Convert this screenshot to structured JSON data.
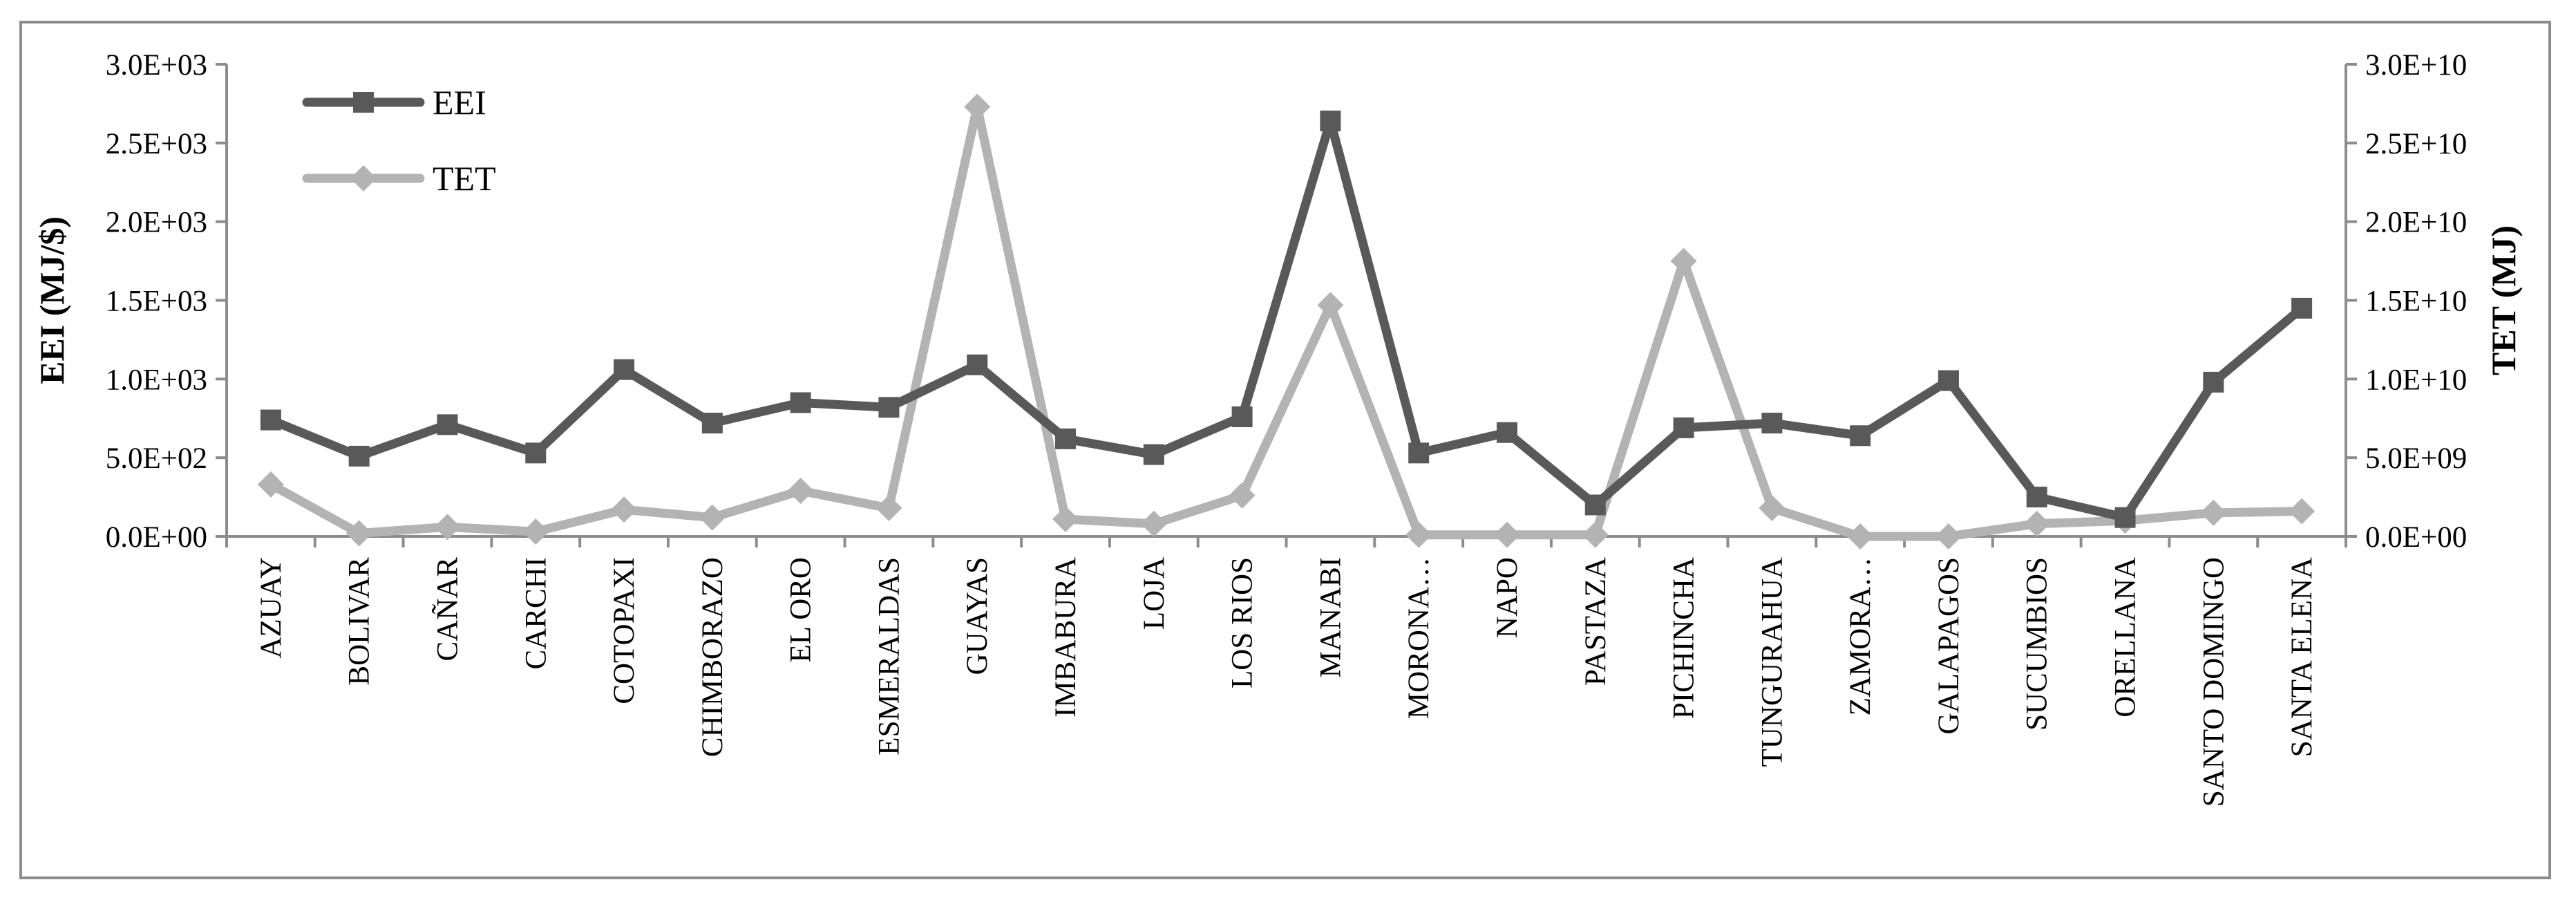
{
  "chart_data": {
    "type": "line",
    "categories": [
      "AZUAY",
      "BOLIVAR",
      "CAÑAR",
      "CARCHI",
      "COTOPAXI",
      "CHIMBORAZO",
      "EL ORO",
      "ESMERALDAS",
      "GUAYAS",
      "IMBABURA",
      "LOJA",
      "LOS RIOS",
      "MANABI",
      "MORONA…",
      "NAPO",
      "PASTAZA",
      "PICHINCHA",
      "TUNGURAHUA",
      "ZAMORA…",
      "GALAPAGOS",
      "SUCUMBIOS",
      "ORELLANA",
      "SANTO DOMINGO",
      "SANTA ELENA"
    ],
    "series": [
      {
        "name": "EEI",
        "axis": "left",
        "color": "#595959",
        "marker": "square",
        "values": [
          740,
          510,
          710,
          530,
          1060,
          720,
          850,
          820,
          1090,
          620,
          520,
          760,
          2640,
          530,
          660,
          200,
          690,
          720,
          640,
          990,
          250,
          120,
          980,
          1450
        ]
      },
      {
        "name": "TET",
        "axis": "right",
        "color": "#b3b3b3",
        "marker": "diamond",
        "values": [
          3300000000.0,
          200000000.0,
          600000000.0,
          300000000.0,
          1700000000.0,
          1200000000.0,
          2900000000.0,
          1800000000.0,
          27300000000.0,
          1100000000.0,
          800000000.0,
          2600000000.0,
          14700000000.0,
          100000000.0,
          100000000.0,
          100000000.0,
          17500000000.0,
          1800000000.0,
          0,
          0,
          800000000.0,
          1000000000.0,
          1500000000.0,
          1600000000.0
        ]
      }
    ],
    "y_left": {
      "label": "EEI (MJ/$)",
      "lim": [
        0,
        3000
      ],
      "ticks": [
        0,
        500,
        1000,
        1500,
        2000,
        2500,
        3000
      ],
      "tick_labels": [
        "0.0E+00",
        "5.0E+02",
        "1.0E+03",
        "1.5E+03",
        "2.0E+03",
        "2.5E+03",
        "3.0E+03"
      ]
    },
    "y_right": {
      "label": "TET (MJ)",
      "lim": [
        0,
        30000000000.0
      ],
      "ticks": [
        0,
        5000000000.0,
        10000000000.0,
        15000000000.0,
        20000000000.0,
        25000000000.0,
        30000000000.0
      ],
      "tick_labels": [
        "0.0E+00",
        "5.0E+09",
        "1.0E+10",
        "1.5E+10",
        "2.0E+10",
        "2.5E+10",
        "3.0E+10"
      ]
    },
    "legend": {
      "position": "top-left",
      "entries": [
        "EEI",
        "TET"
      ]
    },
    "grid": false
  }
}
